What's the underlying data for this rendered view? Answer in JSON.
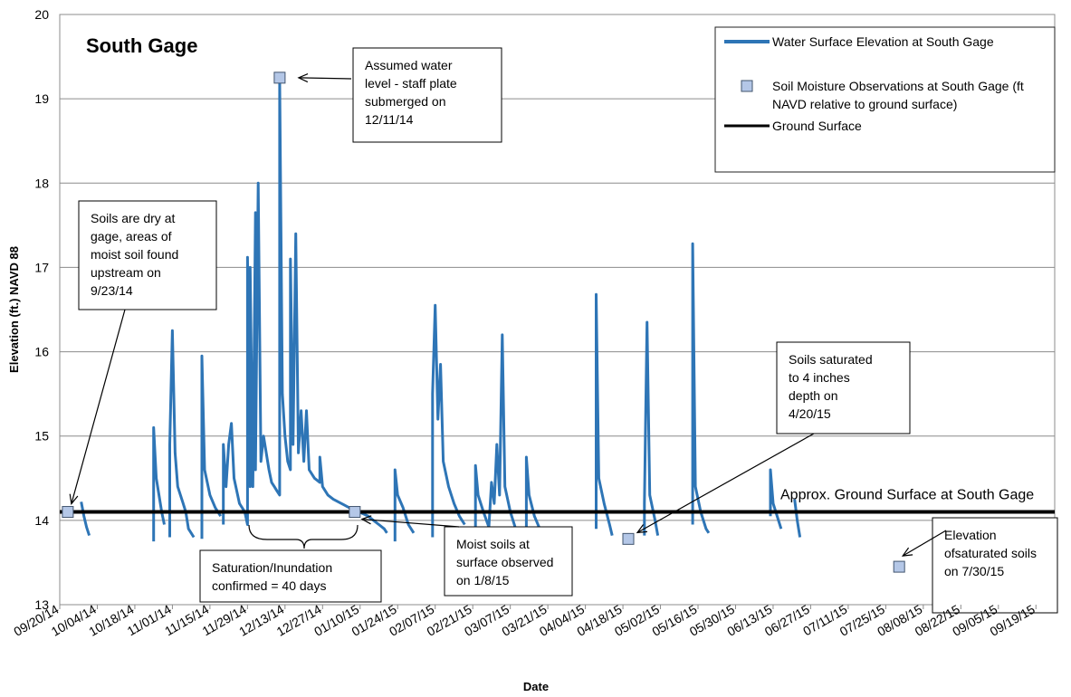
{
  "chart_data": {
    "type": "line",
    "title": "South Gage",
    "xlabel": "Date",
    "ylabel": "Elevation (ft.) NAVD 88",
    "ylim": [
      13,
      20
    ],
    "yticks": [
      13,
      14,
      15,
      16,
      17,
      18,
      19,
      20
    ],
    "xlim": [
      "2014-09-20",
      "2015-09-26"
    ],
    "xtick_labels": [
      "09/20/14",
      "10/04/14",
      "10/18/14",
      "11/01/14",
      "11/15/14",
      "11/29/14",
      "12/13/14",
      "12/27/14",
      "01/10/15",
      "01/24/15",
      "02/07/15",
      "02/21/15",
      "03/07/15",
      "03/21/15",
      "04/04/15",
      "04/18/15",
      "05/02/15",
      "05/16/15",
      "05/30/15",
      "06/13/15",
      "06/27/15",
      "07/11/15",
      "07/25/15",
      "08/08/15",
      "08/22/15",
      "09/05/15",
      "09/19/15"
    ],
    "grid": "horizontal",
    "legend_position": "top-right",
    "colors": {
      "water": "#2e75b6",
      "ground": "#000000",
      "soil_marker": "#b4c7e7",
      "soil_marker_edge": "#41546e"
    },
    "series": [
      {
        "name": "Water Surface Elevation at South Gage",
        "kind": "line",
        "segments": [
          [
            [
              "2014-09-28",
              14.22
            ],
            [
              "2014-09-29",
              14.05
            ],
            [
              "2014-09-30",
              13.92
            ],
            [
              "2014-10-01",
              13.82
            ]
          ],
          [
            [
              "2014-10-25",
              13.75
            ],
            [
              "2014-10-25",
              15.1
            ],
            [
              "2014-10-26",
              14.5
            ],
            [
              "2014-10-27",
              14.3
            ],
            [
              "2014-10-28",
              14.1
            ],
            [
              "2014-10-29",
              13.95
            ]
          ],
          [
            [
              "2014-10-31",
              13.8
            ],
            [
              "2014-10-31",
              14.9
            ],
            [
              "2014-11-01",
              16.25
            ],
            [
              "2014-11-02",
              14.8
            ],
            [
              "2014-11-03",
              14.4
            ],
            [
              "2014-11-05",
              14.2
            ],
            [
              "2014-11-06",
              14.1
            ],
            [
              "2014-11-07",
              13.9
            ],
            [
              "2014-11-09",
              13.8
            ]
          ],
          [
            [
              "2014-11-12",
              13.78
            ],
            [
              "2014-11-12",
              15.95
            ],
            [
              "2014-11-13",
              14.6
            ],
            [
              "2014-11-15",
              14.3
            ],
            [
              "2014-11-17",
              14.15
            ],
            [
              "2014-11-19",
              14.05
            ]
          ],
          [
            [
              "2014-11-20",
              13.95
            ],
            [
              "2014-11-20",
              14.9
            ],
            [
              "2014-11-21",
              14.4
            ],
            [
              "2014-11-22",
              14.9
            ],
            [
              "2014-11-23",
              15.15
            ],
            [
              "2014-11-24",
              14.5
            ],
            [
              "2014-11-26",
              14.2
            ],
            [
              "2014-11-28",
              14.1
            ],
            [
              "2014-11-29",
              13.95
            ],
            [
              "2014-11-29",
              17.12
            ],
            [
              "2014-11-30",
              14.4
            ],
            [
              "2014-11-30",
              17.0
            ],
            [
              "2014-12-01",
              14.4
            ],
            [
              "2014-12-02",
              17.65
            ],
            [
              "2014-12-02",
              14.6
            ],
            [
              "2014-12-03",
              18.0
            ],
            [
              "2014-12-04",
              14.7
            ],
            [
              "2014-12-05",
              15.0
            ],
            [
              "2014-12-07",
              14.6
            ],
            [
              "2014-12-08",
              14.45
            ],
            [
              "2014-12-09",
              14.4
            ],
            [
              "2014-12-10",
              14.35
            ],
            [
              "2014-12-11",
              14.3
            ],
            [
              "2014-12-11",
              19.25
            ],
            [
              "2014-12-12",
              15.5
            ],
            [
              "2014-12-13",
              15.0
            ],
            [
              "2014-12-14",
              14.7
            ],
            [
              "2014-12-15",
              14.6
            ],
            [
              "2014-12-15",
              17.1
            ],
            [
              "2014-12-16",
              14.9
            ],
            [
              "2014-12-17",
              17.4
            ],
            [
              "2014-12-18",
              14.8
            ],
            [
              "2014-12-19",
              15.3
            ],
            [
              "2014-12-20",
              14.7
            ],
            [
              "2014-12-21",
              15.3
            ],
            [
              "2014-12-22",
              14.6
            ],
            [
              "2014-12-24",
              14.5
            ],
            [
              "2014-12-26",
              14.45
            ],
            [
              "2014-12-26",
              14.75
            ],
            [
              "2014-12-27",
              14.4
            ],
            [
              "2014-12-29",
              14.3
            ],
            [
              "2014-12-31",
              14.25
            ],
            [
              "2015-01-03",
              14.2
            ],
            [
              "2015-01-06",
              14.15
            ],
            [
              "2015-01-08",
              14.12
            ],
            [
              "2015-01-11",
              14.08
            ],
            [
              "2015-01-13",
              14.05
            ],
            [
              "2015-01-15",
              14.0
            ],
            [
              "2015-01-17",
              13.95
            ],
            [
              "2015-01-19",
              13.9
            ],
            [
              "2015-01-20",
              13.85
            ]
          ],
          [
            [
              "2015-01-23",
              13.75
            ],
            [
              "2015-01-23",
              14.6
            ],
            [
              "2015-01-24",
              14.3
            ],
            [
              "2015-01-26",
              14.15
            ],
            [
              "2015-01-28",
              13.95
            ],
            [
              "2015-01-30",
              13.85
            ]
          ],
          [
            [
              "2015-02-06",
              13.8
            ],
            [
              "2015-02-06",
              15.5
            ],
            [
              "2015-02-07",
              16.55
            ],
            [
              "2015-02-08",
              15.2
            ],
            [
              "2015-02-09",
              15.85
            ],
            [
              "2015-02-10",
              14.7
            ],
            [
              "2015-02-12",
              14.4
            ],
            [
              "2015-02-14",
              14.2
            ],
            [
              "2015-02-16",
              14.05
            ],
            [
              "2015-02-18",
              13.95
            ]
          ],
          [
            [
              "2015-02-22",
              13.85
            ],
            [
              "2015-02-22",
              14.65
            ],
            [
              "2015-02-23",
              14.3
            ],
            [
              "2015-02-25",
              14.1
            ],
            [
              "2015-02-27",
              13.92
            ],
            [
              "2015-02-28",
              14.45
            ],
            [
              "2015-03-01",
              14.2
            ],
            [
              "2015-03-02",
              14.9
            ],
            [
              "2015-03-03",
              14.3
            ],
            [
              "2015-03-04",
              16.2
            ],
            [
              "2015-03-05",
              14.4
            ],
            [
              "2015-03-07",
              14.1
            ],
            [
              "2015-03-09",
              13.9
            ]
          ],
          [
            [
              "2015-03-13",
              13.85
            ],
            [
              "2015-03-13",
              14.75
            ],
            [
              "2015-03-14",
              14.3
            ],
            [
              "2015-03-16",
              14.05
            ],
            [
              "2015-03-18",
              13.9
            ]
          ],
          [
            [
              "2015-04-08",
              13.9
            ],
            [
              "2015-04-08",
              16.68
            ],
            [
              "2015-04-09",
              14.5
            ],
            [
              "2015-04-11",
              14.2
            ],
            [
              "2015-04-13",
              13.95
            ],
            [
              "2015-04-14",
              13.82
            ]
          ],
          [
            [
              "2015-04-26",
              13.82
            ],
            [
              "2015-04-26",
              14.2
            ],
            [
              "2015-04-27",
              16.35
            ],
            [
              "2015-04-28",
              14.3
            ],
            [
              "2015-04-30",
              14.0
            ],
            [
              "2015-05-01",
              13.82
            ]
          ],
          [
            [
              "2015-05-14",
              13.95
            ],
            [
              "2015-05-14",
              17.28
            ],
            [
              "2015-05-15",
              14.4
            ],
            [
              "2015-05-17",
              14.1
            ],
            [
              "2015-05-19",
              13.9
            ],
            [
              "2015-05-20",
              13.85
            ]
          ],
          [
            [
              "2015-06-12",
              14.05
            ],
            [
              "2015-06-12",
              14.6
            ],
            [
              "2015-06-13",
              14.2
            ],
            [
              "2015-06-15",
              14.0
            ],
            [
              "2015-06-16",
              13.9
            ]
          ],
          [
            [
              "2015-06-21",
              14.25
            ],
            [
              "2015-06-22",
              14.0
            ],
            [
              "2015-06-23",
              13.8
            ]
          ]
        ]
      },
      {
        "name": "Soil Moisture Observations at South Gage (ft NAVD relative to ground surface)",
        "kind": "marker",
        "points": [
          [
            "2014-09-23",
            14.1
          ],
          [
            "2014-12-11",
            19.25
          ],
          [
            "2015-01-08",
            14.1
          ],
          [
            "2015-04-20",
            13.78
          ],
          [
            "2015-07-30",
            13.45
          ]
        ]
      },
      {
        "name": "Ground Surface",
        "kind": "hline",
        "y": 14.1
      }
    ],
    "annotations": [
      {
        "id": "dry",
        "lines": [
          "Soils are dry at",
          "gage, areas of",
          "moist soil found",
          "upstream on",
          "9/23/14"
        ]
      },
      {
        "id": "assumed",
        "lines": [
          "Assumed water",
          "level - staff plate",
          "submerged on",
          "12/11/14"
        ]
      },
      {
        "id": "saturated4",
        "lines": [
          "Soils saturated",
          "to 4 inches",
          "depth on",
          "4/20/15"
        ]
      },
      {
        "id": "moist",
        "lines": [
          "Moist soils at",
          "surface observed",
          "on 1/8/15"
        ]
      },
      {
        "id": "saturation",
        "lines": [
          "Saturation/Inundation",
          "confirmed = 40 days"
        ]
      },
      {
        "id": "elev",
        "lines": [
          "Elevation",
          "ofsaturated soils",
          "on 7/30/15"
        ]
      },
      {
        "id": "ground_label",
        "lines": [
          "Approx. Ground Surface at South Gage"
        ]
      }
    ]
  }
}
